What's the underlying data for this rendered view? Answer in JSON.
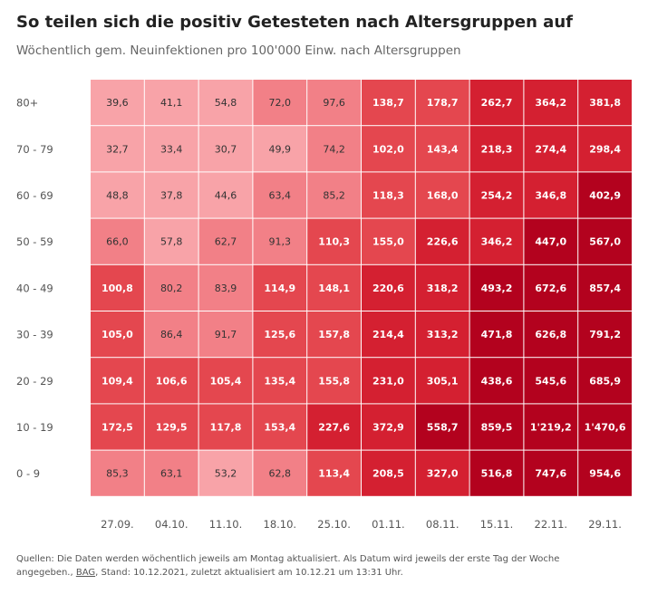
{
  "title": "So teilen sich die positiv Getesteten nach Altersgruppen auf",
  "subtitle": "Wöchentlich gem. Neuinfektionen pro 100'000 Einw. nach Altersgruppen",
  "chart_data": {
    "type": "heatmap",
    "title": "So teilen sich die positiv Getesteten nach Altersgruppen auf",
    "subtitle": "Wöchentlich gem. Neuinfektionen pro 100'000 Einw. nach Altersgruppen",
    "xlabel": "",
    "ylabel": "",
    "x": [
      "27.09.",
      "04.10.",
      "11.10.",
      "18.10.",
      "25.10.",
      "01.11.",
      "08.11.",
      "15.11.",
      "22.11.",
      "29.11."
    ],
    "y": [
      "80+",
      "70 - 79",
      "60 - 69",
      "50 - 59",
      "40 - 49",
      "30 - 39",
      "20 - 29",
      "10 - 19",
      "0 - 9"
    ],
    "values": [
      [
        39.6,
        41.1,
        54.8,
        72.0,
        97.6,
        138.7,
        178.7,
        262.7,
        364.2,
        381.8
      ],
      [
        32.7,
        33.4,
        30.7,
        49.9,
        74.2,
        102.0,
        143.4,
        218.3,
        274.4,
        298.4
      ],
      [
        48.8,
        37.8,
        44.6,
        63.4,
        85.2,
        118.3,
        168.0,
        254.2,
        346.8,
        402.9
      ],
      [
        66.0,
        57.8,
        62.7,
        91.3,
        110.3,
        155.0,
        226.6,
        346.2,
        447.0,
        567.0
      ],
      [
        100.8,
        80.2,
        83.9,
        114.9,
        148.1,
        220.6,
        318.2,
        493.2,
        672.6,
        857.4
      ],
      [
        105.0,
        86.4,
        91.7,
        125.6,
        157.8,
        214.4,
        313.2,
        471.8,
        626.8,
        791.2
      ],
      [
        109.4,
        106.6,
        105.4,
        135.4,
        155.8,
        231.0,
        305.1,
        438.6,
        545.6,
        685.9
      ],
      [
        172.5,
        129.5,
        117.8,
        153.4,
        227.6,
        372.9,
        558.7,
        859.5,
        1219.2,
        1470.6
      ],
      [
        85.3,
        63.1,
        53.2,
        62.8,
        113.4,
        208.5,
        327.0,
        516.8,
        747.6,
        954.6
      ]
    ],
    "labels": [
      [
        "39,6",
        "41,1",
        "54,8",
        "72,0",
        "97,6",
        "138,7",
        "178,7",
        "262,7",
        "364,2",
        "381,8"
      ],
      [
        "32,7",
        "33,4",
        "30,7",
        "49,9",
        "74,2",
        "102,0",
        "143,4",
        "218,3",
        "274,4",
        "298,4"
      ],
      [
        "48,8",
        "37,8",
        "44,6",
        "63,4",
        "85,2",
        "118,3",
        "168,0",
        "254,2",
        "346,8",
        "402,9"
      ],
      [
        "66,0",
        "57,8",
        "62,7",
        "91,3",
        "110,3",
        "155,0",
        "226,6",
        "346,2",
        "447,0",
        "567,0"
      ],
      [
        "100,8",
        "80,2",
        "83,9",
        "114,9",
        "148,1",
        "220,6",
        "318,2",
        "493,2",
        "672,6",
        "857,4"
      ],
      [
        "105,0",
        "86,4",
        "91,7",
        "125,6",
        "157,8",
        "214,4",
        "313,2",
        "471,8",
        "626,8",
        "791,2"
      ],
      [
        "109,4",
        "106,6",
        "105,4",
        "135,4",
        "155,8",
        "231,0",
        "305,1",
        "438,6",
        "545,6",
        "685,9"
      ],
      [
        "172,5",
        "129,5",
        "117,8",
        "153,4",
        "227,6",
        "372,9",
        "558,7",
        "859,5",
        "1'219,2",
        "1'470,6"
      ],
      [
        "85,3",
        "63,1",
        "53,2",
        "62,8",
        "113,4",
        "208,5",
        "327,0",
        "516,8",
        "747,6",
        "954,6"
      ]
    ],
    "color_bins": [
      {
        "max": 60,
        "color": "#f8a3a8",
        "text_color": "#333333"
      },
      {
        "max": 100,
        "color": "#f28087",
        "text_color": "#333333"
      },
      {
        "max": 200,
        "color": "#e4474f",
        "text_color": "#ffffff"
      },
      {
        "max": 400,
        "color": "#d42031",
        "text_color": "#ffffff"
      },
      {
        "max": 100000,
        "color": "#b3021e",
        "text_color": "#ffffff"
      }
    ],
    "legend": "none",
    "grid": false
  },
  "footer": {
    "line1": "Quellen: Die Daten werden wöchentlich jeweils am Montag aktualisiert. Als Datum wird jeweils der erste Tag der Woche",
    "line2_prefix": "angegeben., ",
    "source_link": "BAG",
    "line2_suffix": ", Stand: 10.12.2021, zuletzt aktualisiert am 10.12.21 um 13:31 Uhr."
  }
}
